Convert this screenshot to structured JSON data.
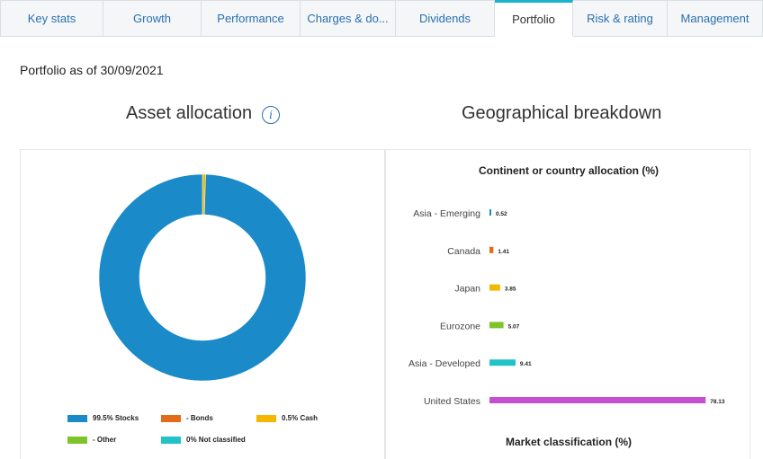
{
  "tabs": [
    {
      "label": "Key stats",
      "active": false
    },
    {
      "label": "Growth",
      "active": false
    },
    {
      "label": "Performance",
      "active": false
    },
    {
      "label": "Charges & do...",
      "active": false
    },
    {
      "label": "Dividends",
      "active": false
    },
    {
      "label": "Portfolio",
      "active": true
    },
    {
      "label": "Risk & rating",
      "active": false
    },
    {
      "label": "Management",
      "active": false
    }
  ],
  "portfolio_date_label": "Portfolio as of 30/09/2021",
  "asset_allocation": {
    "title": "Asset allocation",
    "info_icon": "info-icon"
  },
  "geographical": {
    "title": "Geographical breakdown",
    "continent_title": "Continent or country allocation (%)",
    "market_title": "Market classification (%)"
  },
  "chart_data": [
    {
      "type": "pie",
      "style": "donut",
      "labels": [
        "Stocks",
        "Bonds",
        "Cash",
        "Other",
        "Not classified"
      ],
      "values": [
        99.5,
        0,
        0.5,
        0,
        0
      ],
      "legend_labels": [
        "99.5% Stocks",
        "- Bonds",
        "0.5% Cash",
        "- Other",
        "0% Not classified"
      ],
      "colors": [
        "#1a8ac8",
        "#e36b1c",
        "#f5b800",
        "#7cc42a",
        "#1fc3c8"
      ],
      "legend": "bottom"
    },
    {
      "type": "bar",
      "orientation": "horizontal",
      "title": "Continent or country allocation (%)",
      "categories": [
        "Asia - Emerging",
        "Canada",
        "Japan",
        "Eurozone",
        "Asia - Developed",
        "United States"
      ],
      "values": [
        0.52,
        1.41,
        3.85,
        5.07,
        9.41,
        78.13
      ],
      "value_labels": [
        "0.52",
        "1.41",
        "3.85",
        "5.07",
        "9.41",
        "78.13"
      ],
      "colors": [
        "#1a8ac8",
        "#e36b1c",
        "#f5b800",
        "#7cc42a",
        "#1fc3c8",
        "#c44fd1"
      ],
      "xlim": [
        0,
        80
      ]
    }
  ]
}
